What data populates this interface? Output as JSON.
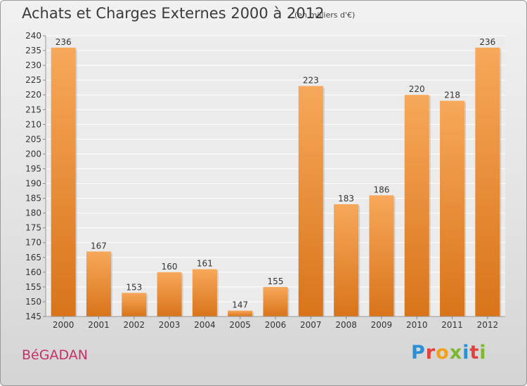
{
  "header": {
    "title": "Achats et Charges Externes 2000 à 2012",
    "unit_note": "(en milliers d'€)"
  },
  "footer": {
    "commune_name": "BéGADAN",
    "logo_text": "Proxiti"
  },
  "colors": {
    "bar_light": "#f7a85a",
    "bar_dark": "#d9741a",
    "commune_text": "#c5306a",
    "logo_letters": [
      "#2b8fd6",
      "#e4403c",
      "#f0a21c",
      "#7cb92e",
      "#2b8fd6",
      "#e4403c",
      "#7cb92e"
    ]
  },
  "chart_data": {
    "type": "bar",
    "categories": [
      "2000",
      "2001",
      "2002",
      "2003",
      "2004",
      "2005",
      "2006",
      "2007",
      "2008",
      "2009",
      "2010",
      "2011",
      "2012"
    ],
    "values": [
      236,
      167,
      153,
      160,
      161,
      147,
      155,
      223,
      183,
      186,
      220,
      218,
      236
    ],
    "title": "Achats et Charges Externes 2000 à 2012",
    "subtitle": "(en milliers d'€)",
    "xlabel": "",
    "ylabel": "",
    "ylim": [
      145,
      240
    ],
    "yticks": [
      145,
      150,
      155,
      160,
      165,
      170,
      175,
      180,
      185,
      190,
      195,
      200,
      205,
      210,
      215,
      220,
      225,
      230,
      235,
      240
    ],
    "grid": true,
    "data_labels": true,
    "legend": "none"
  }
}
